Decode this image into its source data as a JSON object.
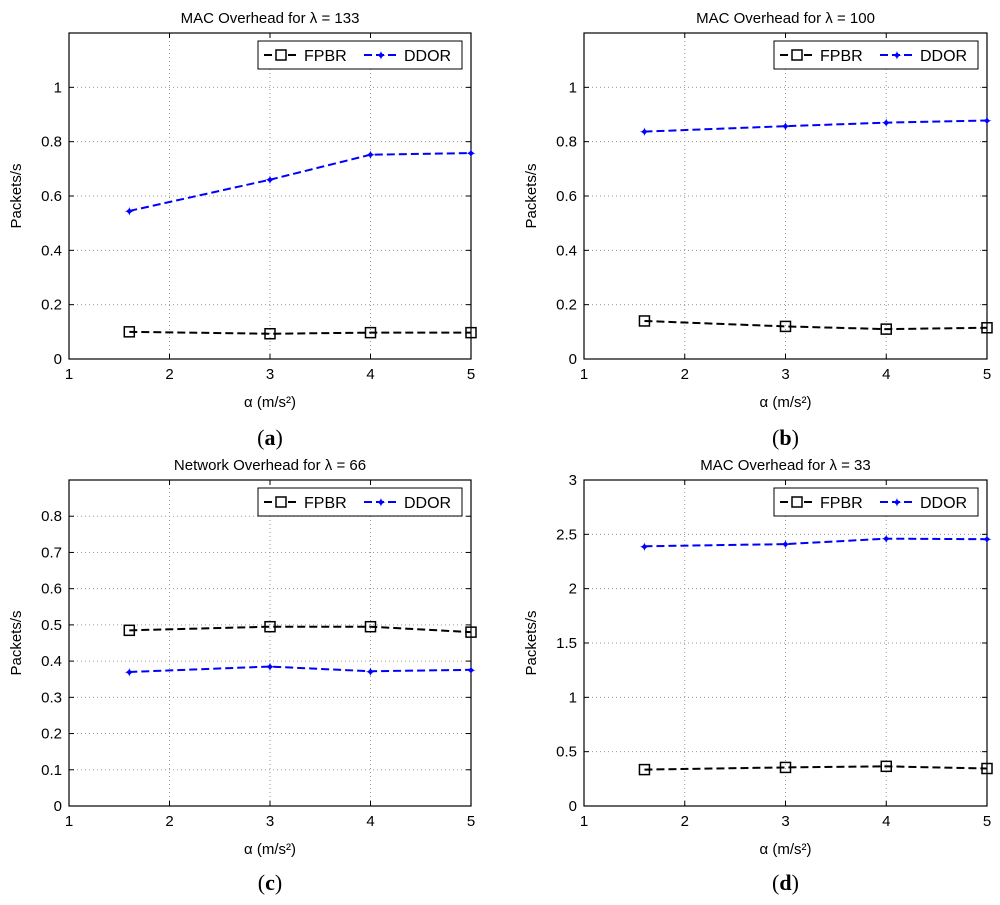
{
  "figure": {
    "subplots": [
      {
        "caption": "a",
        "title": "MAC Overhead for λ = 133"
      },
      {
        "caption": "b",
        "title": "MAC Overhead for λ = 100"
      },
      {
        "caption": "c",
        "title": "Network Overhead for λ = 66"
      },
      {
        "caption": "d",
        "title": "MAC Overhead for λ = 33"
      }
    ]
  },
  "colors": {
    "fpbr": "#000000",
    "ddor": "#0000ff",
    "grid": "#9a9a9a"
  },
  "chart_data": [
    {
      "type": "line",
      "title": "MAC Overhead for λ = 133",
      "caption": "a",
      "xlabel": "α (m/s²)",
      "ylabel": "Packets/s",
      "xlim": [
        1,
        5
      ],
      "ylim": [
        0,
        1.2
      ],
      "xticks": [
        1,
        2,
        3,
        4,
        5
      ],
      "yticks": [
        0,
        0.2,
        0.4,
        0.6,
        0.8,
        1
      ],
      "grid": true,
      "legend": "top-right",
      "x": [
        1.6,
        3,
        4,
        5
      ],
      "series": [
        {
          "name": "FPBR",
          "values": [
            0.1,
            0.093,
            0.097,
            0.097
          ]
        },
        {
          "name": "DDOR",
          "values": [
            0.545,
            0.66,
            0.752,
            0.758
          ]
        }
      ]
    },
    {
      "type": "line",
      "title": "MAC Overhead for λ = 100",
      "caption": "b",
      "xlabel": "α (m/s²)",
      "ylabel": "Packets/s",
      "xlim": [
        1,
        5
      ],
      "ylim": [
        0,
        1.2
      ],
      "xticks": [
        1,
        2,
        3,
        4,
        5
      ],
      "yticks": [
        0,
        0.2,
        0.4,
        0.6,
        0.8,
        1
      ],
      "grid": true,
      "legend": "top-right",
      "x": [
        1.6,
        3,
        4,
        5
      ],
      "series": [
        {
          "name": "FPBR",
          "values": [
            0.14,
            0.12,
            0.11,
            0.115
          ]
        },
        {
          "name": "DDOR",
          "values": [
            0.837,
            0.857,
            0.87,
            0.878
          ]
        }
      ]
    },
    {
      "type": "line",
      "title": "Network Overhead for λ = 66",
      "caption": "c",
      "xlabel": "α (m/s²)",
      "ylabel": "Packets/s",
      "xlim": [
        1,
        5
      ],
      "ylim": [
        0,
        0.9
      ],
      "xticks": [
        1,
        2,
        3,
        4,
        5
      ],
      "yticks": [
        0,
        0.1,
        0.2,
        0.3,
        0.4,
        0.5,
        0.6,
        0.7,
        0.8
      ],
      "grid": true,
      "legend": "top-right",
      "x": [
        1.6,
        3,
        4,
        5
      ],
      "series": [
        {
          "name": "FPBR",
          "values": [
            0.485,
            0.495,
            0.495,
            0.48
          ]
        },
        {
          "name": "DDOR",
          "values": [
            0.37,
            0.385,
            0.372,
            0.376
          ]
        }
      ]
    },
    {
      "type": "line",
      "title": "MAC Overhead for λ = 33",
      "caption": "d",
      "xlabel": "α (m/s²)",
      "ylabel": "Packets/s",
      "xlim": [
        1,
        5
      ],
      "ylim": [
        0,
        3
      ],
      "xticks": [
        1,
        2,
        3,
        4,
        5
      ],
      "yticks": [
        0,
        0.5,
        1,
        1.5,
        2,
        2.5,
        3
      ],
      "grid": true,
      "legend": "top-right",
      "x": [
        1.6,
        3,
        4,
        5
      ],
      "series": [
        {
          "name": "FPBR",
          "values": [
            0.335,
            0.355,
            0.365,
            0.345
          ]
        },
        {
          "name": "DDOR",
          "values": [
            2.39,
            2.41,
            2.46,
            2.455
          ]
        }
      ]
    }
  ]
}
